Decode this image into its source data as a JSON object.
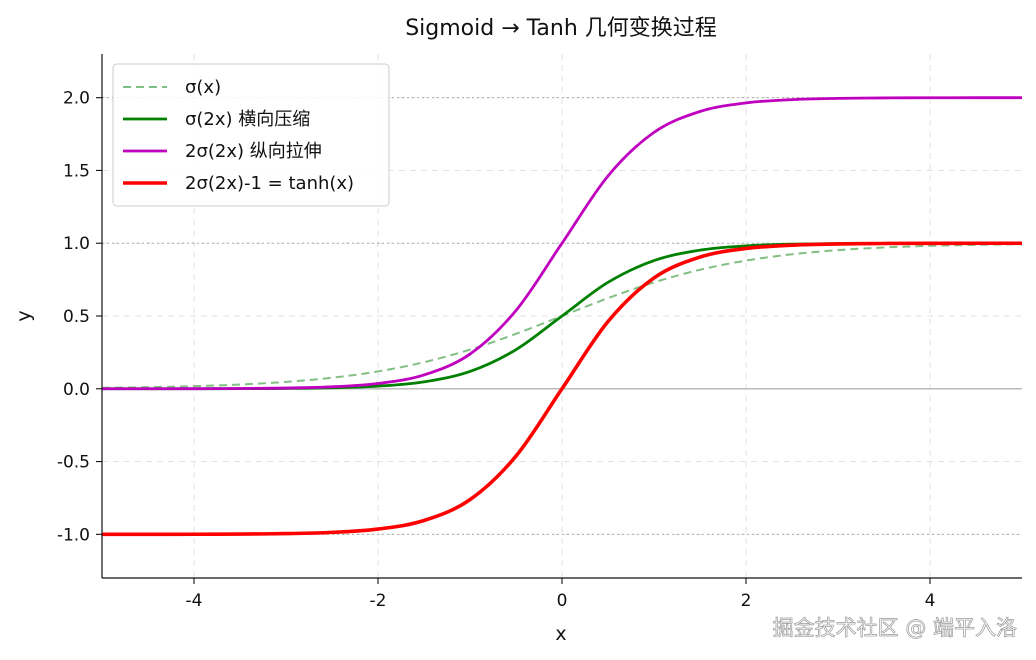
{
  "chart_data": {
    "type": "line",
    "title": "Sigmoid → Tanh 几何变换过程",
    "xlabel": "x",
    "ylabel": "y",
    "xlim": [
      -5,
      5
    ],
    "ylim": [
      -1.3,
      2.3
    ],
    "x_ticks": [
      -4,
      -2,
      0,
      2,
      4
    ],
    "x_tick_labels": [
      "-4",
      "-2",
      "0",
      "2",
      "4"
    ],
    "y_ticks": [
      -1.0,
      -0.5,
      0.0,
      0.5,
      1.0,
      1.5,
      2.0
    ],
    "y_tick_labels": [
      "-1.0",
      "-0.5",
      "0.0",
      "0.5",
      "1.0",
      "1.5",
      "2.0"
    ],
    "grid": true,
    "legend_position": "top-left",
    "reference_lines": [
      {
        "axis": "y",
        "value": 0,
        "style": "solid",
        "color": "#a9a9a9"
      },
      {
        "axis": "y",
        "value": 1,
        "style": "dotted",
        "color": "#a9a9a9"
      },
      {
        "axis": "y",
        "value": 2,
        "style": "dotted",
        "color": "#a9a9a9"
      },
      {
        "axis": "y",
        "value": -1,
        "style": "dotted",
        "color": "#a9a9a9"
      }
    ],
    "x": [
      -5,
      -4.5,
      -4,
      -3.5,
      -3,
      -2.5,
      -2,
      -1.5,
      -1,
      -0.5,
      0,
      0.5,
      1,
      1.5,
      2,
      2.5,
      3,
      3.5,
      4,
      4.5,
      5
    ],
    "series": [
      {
        "name": "σ(x)",
        "color": "#82bf82",
        "style": "dashed",
        "values": [
          0.0067,
          0.011,
          0.018,
          0.0293,
          0.0474,
          0.0759,
          0.1192,
          0.1824,
          0.2689,
          0.3775,
          0.5,
          0.6225,
          0.7311,
          0.8176,
          0.8808,
          0.9241,
          0.9526,
          0.9707,
          0.982,
          0.989,
          0.9933
        ]
      },
      {
        "name": "σ(2x) 横向压缩",
        "color": "#008000",
        "style": "solid",
        "values": [
          4.54e-05,
          0.000123,
          0.000335,
          0.000911,
          0.00247,
          0.00669,
          0.018,
          0.0474,
          0.1192,
          0.2689,
          0.5,
          0.7311,
          0.8808,
          0.9526,
          0.982,
          0.99331,
          0.99753,
          0.99909,
          0.99966,
          0.99988,
          0.99995
        ]
      },
      {
        "name": "2σ(2x) 纵向拉伸",
        "color": "#bf00bf",
        "style": "solid",
        "values": [
          9.08e-05,
          0.000247,
          0.000671,
          0.00182,
          0.00495,
          0.01339,
          0.036,
          0.0949,
          0.2384,
          0.5379,
          1.0,
          1.4621,
          1.7616,
          1.9051,
          1.964,
          1.98661,
          1.99505,
          1.99818,
          1.99933,
          1.99975,
          1.99991
        ]
      },
      {
        "name": "2σ(2x)-1 = tanh(x)",
        "color": "#ff0000",
        "style": "solid",
        "values": [
          -0.99991,
          -0.99975,
          -0.99933,
          -0.99818,
          -0.99505,
          -0.98661,
          -0.964,
          -0.9051,
          -0.7616,
          -0.4621,
          0.0,
          0.4621,
          0.7616,
          0.9051,
          0.964,
          0.98661,
          0.99505,
          0.99818,
          0.99933,
          0.99975,
          0.99991
        ]
      }
    ],
    "watermark": "掘金技术社区 @ 端平入洛"
  }
}
